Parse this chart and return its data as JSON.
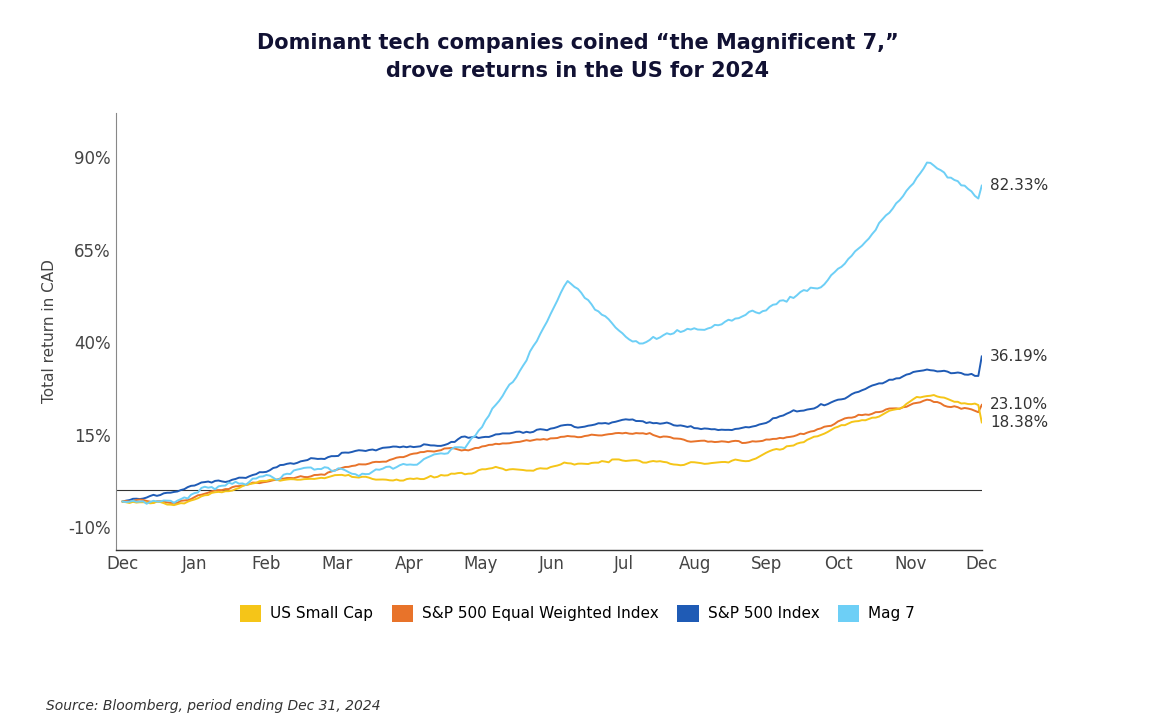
{
  "title": "Dominant tech companies coined “the Magnificent 7,”\ndrove returns in the US for 2024",
  "ylabel": "Total return in CAD",
  "source": "Source: Bloomberg, period ending Dec 31, 2024",
  "end_labels": {
    "mag7": "82.33%",
    "sp500": "36.19%",
    "sp500ew": "23.10%",
    "smallcap": "18.38%"
  },
  "end_values": {
    "mag7": 82.33,
    "sp500": 36.19,
    "sp500ew": 23.1,
    "smallcap": 18.38
  },
  "colors": {
    "mag7": "#6DCFF6",
    "sp500": "#1F5BB5",
    "sp500ew": "#E8732A",
    "smallcap": "#F5C518"
  },
  "x_labels": [
    "Dec",
    "Jan",
    "Feb",
    "Mar",
    "Apr",
    "May",
    "Jun",
    "Jul",
    "Aug",
    "Sep",
    "Oct",
    "Nov",
    "Dec"
  ],
  "ytick_values": [
    -10,
    15,
    40,
    65,
    90
  ],
  "ytick_labels": [
    "-10%",
    "15%",
    "40%",
    "65%",
    "90%"
  ],
  "ylim": [
    -16,
    102
  ],
  "xlim": [
    -0.1,
    12.0
  ],
  "background_color": "#FFFFFF",
  "legend_bg": "#EAEAEA",
  "title_color": "#111133",
  "line_width": 1.4,
  "title_fontsize": 15,
  "axis_fontsize": 12,
  "label_fontsize": 11
}
